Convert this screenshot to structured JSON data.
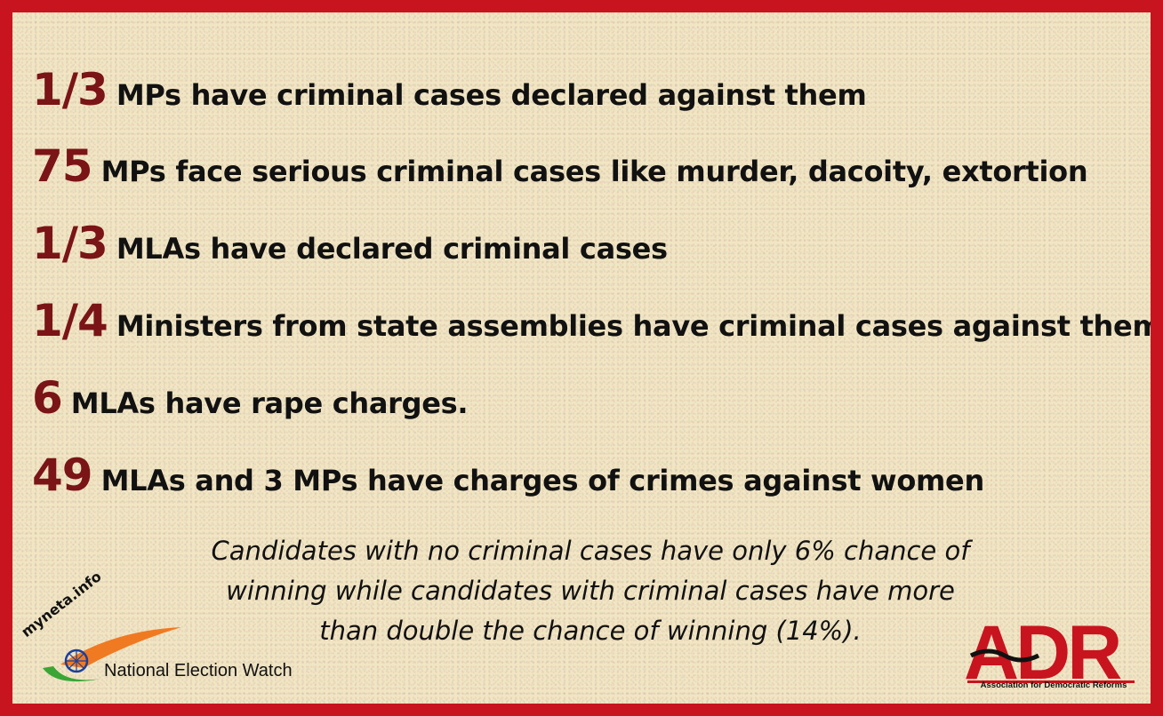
{
  "facts": [
    {
      "number": "1/3",
      "text": "MPs have criminal cases declared against them"
    },
    {
      "number": "75",
      "text": "MPs face serious criminal cases like murder, dacoity, extortion"
    },
    {
      "number": "1/3",
      "text": "MLAs have  declared criminal cases"
    },
    {
      "number": "1/4",
      "text": "Ministers from state assemblies have criminal cases against them"
    },
    {
      "number": "6",
      "text": "MLAs have rape charges."
    },
    {
      "number": "49",
      "text": "MLAs and 3 MPs have charges of crimes against women"
    }
  ],
  "note": {
    "line1": "Candidates with no criminal cases have only 6% chance of",
    "line2": "winning while candidates with criminal cases have more",
    "line3": "than double the chance of winning (14%)."
  },
  "logos": {
    "myneta": "myneta.info",
    "nev": "National Election Watch",
    "adr": "ADR",
    "adr_caption": "Association for Democratic Reforms"
  },
  "colors": {
    "border": "#c8141e",
    "number": "#7a1416",
    "background": "#f1e6c4"
  }
}
